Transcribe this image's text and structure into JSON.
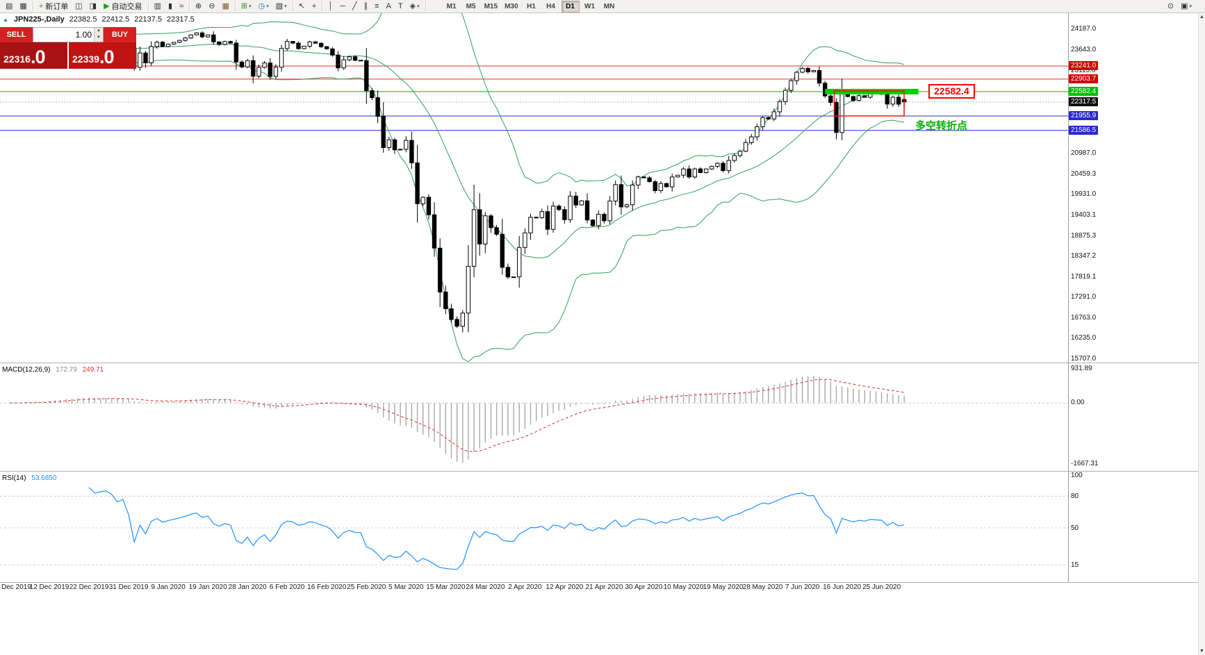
{
  "toolbar": {
    "items": [
      {
        "name": "new-chart",
        "glyph": "▤"
      },
      {
        "name": "profiles",
        "glyph": "▦"
      },
      {
        "sep": true
      },
      {
        "name": "new-order",
        "glyph": "+",
        "glyph_color": "#1f9d1f",
        "label": "新订单"
      },
      {
        "name": "market-watch",
        "glyph": "◫"
      },
      {
        "name": "navigator",
        "glyph": "◨"
      },
      {
        "name": "autotrading",
        "glyph": "▶",
        "glyph_color": "#1f9d1f",
        "label": "自动交易"
      },
      {
        "sep": true
      },
      {
        "name": "bar-chart",
        "glyph": "▥"
      },
      {
        "name": "candlestick-chart",
        "glyph": "▮"
      },
      {
        "name": "line-chart",
        "glyph": "≈"
      },
      {
        "sep": true
      },
      {
        "name": "zoom-in",
        "glyph": "⊕"
      },
      {
        "name": "zoom-out",
        "glyph": "⊖"
      },
      {
        "name": "auto-arrange",
        "glyph": "▦",
        "glyph_color": "#7a5c1e"
      },
      {
        "sep": true
      },
      {
        "name": "indicators",
        "glyph": "⊞",
        "glyph_color": "#1f9d1f",
        "caret": true
      },
      {
        "name": "periods",
        "glyph": "◷",
        "glyph_color": "#1f5dbf",
        "caret": true
      },
      {
        "name": "templates",
        "glyph": "▧",
        "caret": true
      },
      {
        "sep": true
      },
      {
        "name": "cursor",
        "glyph": "↖"
      },
      {
        "name": "crosshair",
        "glyph": "+"
      },
      {
        "sep": true
      },
      {
        "name": "vertical-line",
        "glyph": "│"
      },
      {
        "name": "horizontal-line",
        "glyph": "─"
      },
      {
        "name": "trendline",
        "glyph": "╱"
      },
      {
        "name": "channel",
        "glyph": "∥"
      },
      {
        "name": "fibonacci",
        "glyph": "≡"
      },
      {
        "name": "text",
        "glyph": "A"
      },
      {
        "name": "text-label",
        "glyph": "T"
      },
      {
        "name": "arrows",
        "glyph": "◈",
        "caret": true
      },
      {
        "sep": true
      }
    ],
    "timeframes": [
      "M1",
      "M5",
      "M15",
      "M30",
      "H1",
      "H4",
      "D1",
      "W1",
      "MN"
    ],
    "active_timeframe": "D1",
    "right_items": [
      {
        "name": "search",
        "glyph": "⊙"
      },
      {
        "name": "windows",
        "glyph": "▣",
        "caret": true
      }
    ]
  },
  "chart_info": {
    "symbol": "JPN225-,Daily",
    "open": "22382.5",
    "high": "22412.5",
    "low": "22137.5",
    "close": "22317.5"
  },
  "trade_panel": {
    "sell_label": "SELL",
    "buy_label": "BUY",
    "volume": "1.00",
    "sell_price": "22316",
    "sell_price_frac": ".0",
    "buy_price": "22339",
    "buy_price_frac": ".0"
  },
  "price_axis": {
    "labels": [
      {
        "text": "24187.0",
        "price": 24187.0
      },
      {
        "text": "23643.0",
        "price": 23643.0
      },
      {
        "text": "23115.0",
        "price": 23115.0
      },
      {
        "text": "20987.0",
        "price": 20987.0
      },
      {
        "text": "20459.3",
        "price": 20459.3
      },
      {
        "text": "19931.0",
        "price": 19931.0
      },
      {
        "text": "19403.1",
        "price": 19403.1
      },
      {
        "text": "18875.3",
        "price": 18875.3
      },
      {
        "text": "18347.2",
        "price": 18347.2
      },
      {
        "text": "17819.1",
        "price": 17819.1
      },
      {
        "text": "17291.0",
        "price": 17291.0
      },
      {
        "text": "16763.0",
        "price": 16763.0
      },
      {
        "text": "16235.0",
        "price": 16235.0
      },
      {
        "text": "15707.0",
        "price": 15707.0
      }
    ],
    "badges": [
      {
        "text": "23241.0",
        "price": 23241.0,
        "bg": "#d40000"
      },
      {
        "text": "22903.7",
        "price": 22903.7,
        "bg": "#d40000"
      },
      {
        "text": "22582.4",
        "price": 22582.4,
        "bg": "#00c000"
      },
      {
        "text": "22317.5",
        "price": 22317.5,
        "bg": "#111111"
      },
      {
        "text": "21955.9",
        "price": 21955.9,
        "bg": "#2929cc"
      },
      {
        "text": "21586.5",
        "price": 21586.5,
        "bg": "#2929cc"
      }
    ]
  },
  "hlines": [
    {
      "price": 23241.0,
      "color": "#e03131"
    },
    {
      "price": 22903.7,
      "color": "#e03131"
    },
    {
      "price": 22582.4,
      "color": "#00b300"
    },
    {
      "price": 21955.9,
      "color": "#2929cc"
    },
    {
      "price": 21586.5,
      "color": "#2929cc"
    }
  ],
  "annotations": {
    "level_label": "22582.4",
    "pivot_text": "多空转折点",
    "green_band": {
      "price": 22582.4,
      "bar_start": 144,
      "bar_end": 160.5
    },
    "red_box": {
      "price_top": 22600,
      "price_bottom": 21958,
      "bar_start": 146,
      "bar_end": 157.6
    }
  },
  "macd_panel": {
    "name": "MACD(12,26,9)",
    "value1": "172.79",
    "value2": "249.71",
    "axis": [
      "931.89",
      "0.00",
      "-1667.31"
    ]
  },
  "rsi_panel": {
    "name": "RSI(14)",
    "value": "53.6850",
    "axis": [
      "100",
      "80",
      "50",
      "15"
    ],
    "levels": [
      80,
      50,
      15
    ]
  },
  "dates": [
    "Dec 2019",
    "12 Dec 2019",
    "22 Dec 2019",
    "31 Dec 2019",
    "9 Jan 2020",
    "19 Jan 2020",
    "28 Jan 2020",
    "6 Feb 2020",
    "16 Feb 2020",
    "25 Feb 2020",
    "5 Mar 2020",
    "15 Mar 2020",
    "24 Mar 2020",
    "2 Apr 2020",
    "12 Apr 2020",
    "21 Apr 2020",
    "30 Apr 2020",
    "10 May 2020",
    "19 May 2020",
    "28 May 2020",
    "7 Jun 2020",
    "16 Jun 2020",
    "25 Jun 2020"
  ],
  "chart_data": {
    "type": "candlestick",
    "symbol": "JPN225",
    "timeframe": "Daily",
    "y_axis_range": [
      15653,
      24615
    ],
    "closes": [
      23300,
      23354,
      23430,
      23410,
      23391,
      23424,
      23520,
      23640,
      23700,
      23755,
      23820,
      23850,
      23830,
      23810,
      23821,
      23780,
      23830,
      23864,
      23840,
      23783,
      23842,
      23700,
      23205,
      23576,
      23320,
      23740,
      23851,
      23740,
      23804,
      23850,
      23900,
      23962,
      24041,
      24090,
      23990,
      24041,
      23861,
      23795,
      23869,
      23830,
      23343,
      23216,
      23380,
      22977,
      23205,
      23320,
      22972,
      23210,
      23690,
      23873,
      23828,
      23686,
      23749,
      23861,
      23827,
      23738,
      23680,
      23523,
      23193,
      23401,
      23479,
      23387,
      23380,
      22605,
      22426,
      21948,
      21143,
      21344,
      21083,
      21100,
      21329,
      20750,
      19699,
      19867,
      19416,
      18560,
      17431,
      17002,
      16726,
      16553,
      16888,
      18092,
      19547,
      18665,
      19389,
      19085,
      18917,
      18065,
      17819,
      17820,
      18576,
      18950,
      19353,
      19346,
      19499,
      19043,
      19639,
      19551,
      19290,
      19897,
      19669,
      19775,
      19281,
      19137,
      19429,
      19262,
      19771,
      20194,
      19619,
      19675,
      20180,
      20391,
      20366,
      20267,
      20037,
      20218,
      20134,
      20390,
      20433,
      20595,
      20388,
      20596,
      20500,
      20595,
      20660,
      20741,
      20553,
      20813,
      20940,
      21050,
      21271,
      21419,
      21680,
      21916,
      21878,
      22062,
      22326,
      22614,
      22864,
      23080,
      23178,
      23091,
      23125,
      22800,
      22472,
      22305,
      21531,
      22582,
      22456,
      22355,
      22479,
      22437,
      22549,
      22534,
      22512,
      22260,
      22437,
      22259,
      22317.5
    ],
    "current_bar": {
      "o": 22382.5,
      "h": 22412.5,
      "l": 22137.5,
      "c": 22317.5
    },
    "indicators": {
      "bollinger": {
        "period": 20,
        "deviation": 2
      },
      "macd": {
        "fast": 12,
        "slow": 26,
        "signal": 9
      },
      "rsi": {
        "period": 14
      }
    }
  }
}
